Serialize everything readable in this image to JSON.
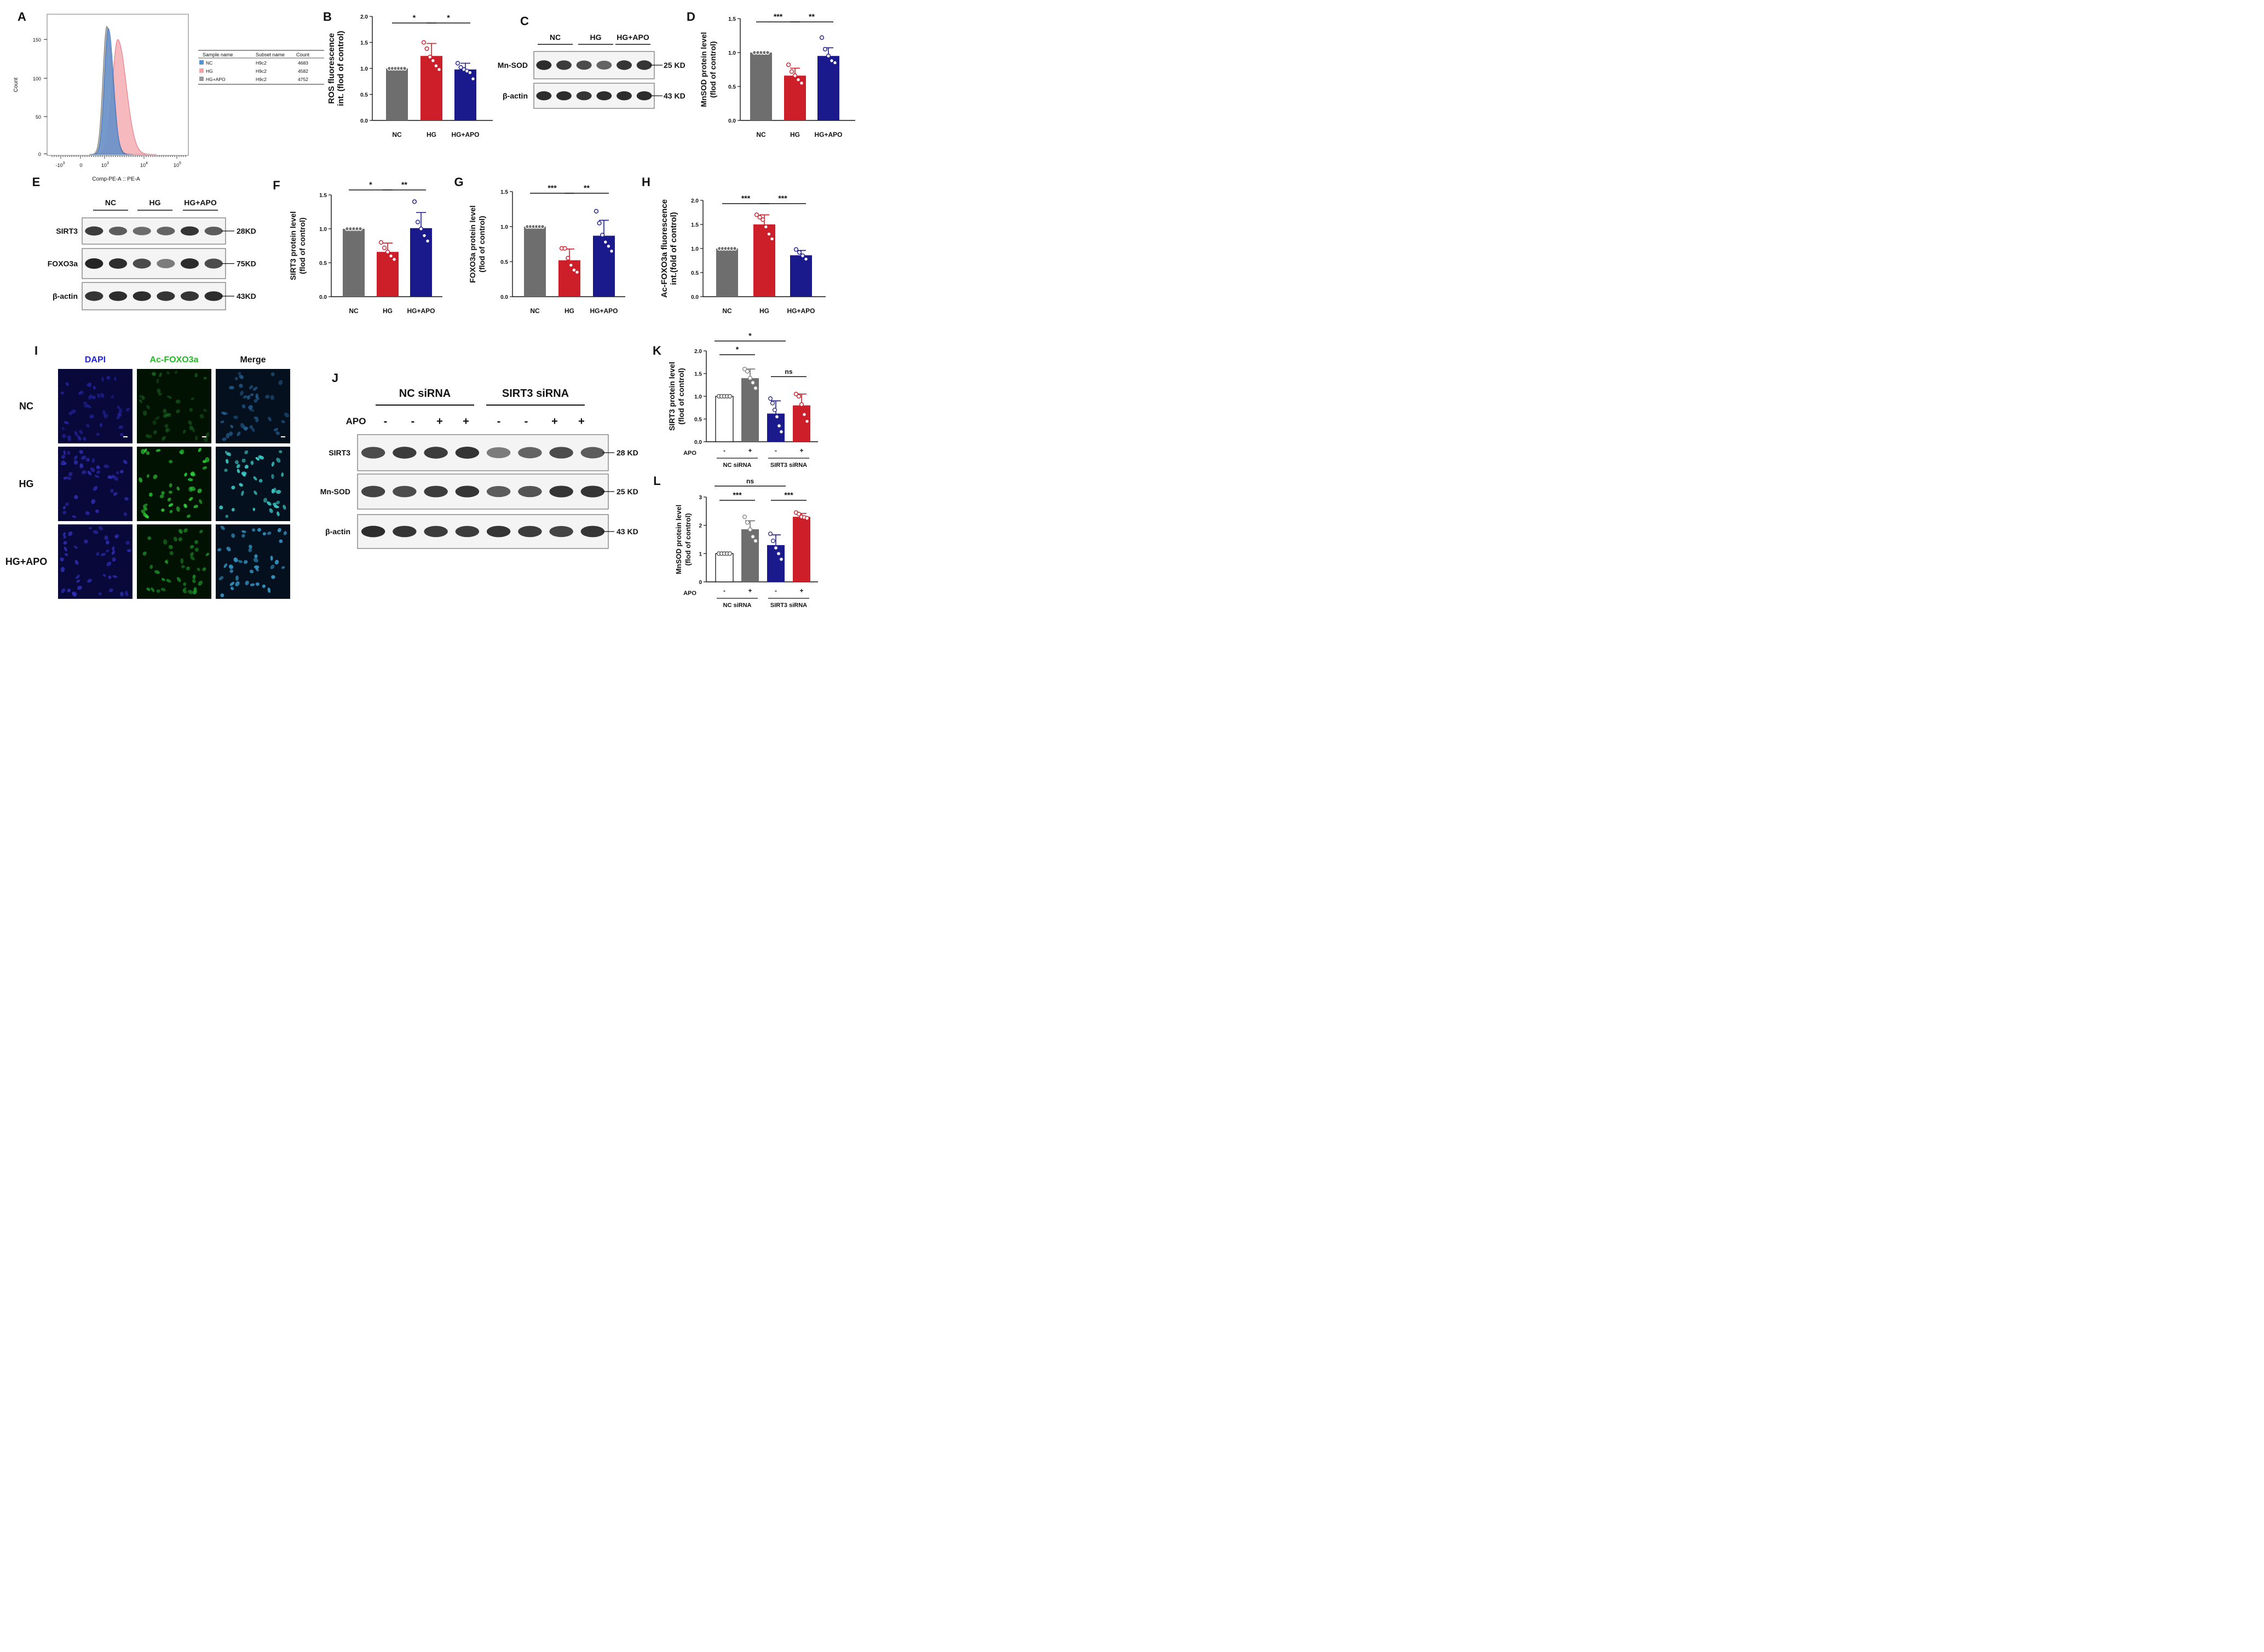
{
  "panels": {
    "A": "A",
    "B": "B",
    "C": "C",
    "D": "D",
    "E": "E",
    "F": "F",
    "G": "G",
    "H": "H",
    "I": "I",
    "J": "J",
    "K": "K",
    "L": "L"
  },
  "colors": {
    "nc": "#6e6e6e",
    "hg": "#cc1f2a",
    "apo": "#1a1a8c",
    "flow_nc": "#5b8fd6",
    "flow_hg": "#f3a3a8",
    "flow_apo": "#9a9a9a"
  },
  "flow": {
    "xlabel": "Comp-PE-A :: PE-A",
    "ylabel": "Count",
    "yticks": [
      "0",
      "50",
      "100",
      "150"
    ],
    "xticks": [
      {
        "base": "-10",
        "exp": "3"
      },
      {
        "base": "0",
        "exp": ""
      },
      {
        "base": "10",
        "exp": "3"
      },
      {
        "base": "10",
        "exp": "4"
      },
      {
        "base": "10",
        "exp": "5"
      }
    ],
    "table": {
      "headers": [
        "Sample name",
        "Subset name",
        "Count"
      ],
      "rows": [
        {
          "sample": "NC",
          "subset": "H9c2",
          "count": "4683"
        },
        {
          "sample": "HG",
          "subset": "H9c2",
          "count": "4582"
        },
        {
          "sample": "HG+APO",
          "subset": "H9c2",
          "count": "4752"
        }
      ]
    }
  },
  "blots": {
    "C": {
      "groups": [
        "NC",
        "HG",
        "HG+APO"
      ],
      "rows": [
        {
          "label": "Mn-SOD",
          "size": "25 KD"
        },
        {
          "label": "β-actin",
          "size": "43 KD"
        }
      ]
    },
    "E": {
      "groups": [
        "NC",
        "HG",
        "HG+APO"
      ],
      "rows": [
        {
          "label": "SIRT3",
          "size": "28KD"
        },
        {
          "label": "FOXO3a",
          "size": "75KD"
        },
        {
          "label": "β-actin",
          "size": "43KD"
        }
      ]
    },
    "J": {
      "groups": [
        "NC  siRNA",
        "SIRT3  siRNA"
      ],
      "apo_label": "APO",
      "apo_signs": [
        "-",
        "-",
        "+",
        "+",
        "-",
        "-",
        "+",
        "+"
      ],
      "rows": [
        {
          "label": "SIRT3",
          "size": "28 KD"
        },
        {
          "label": "Mn-SOD",
          "size": "25 KD"
        },
        {
          "label": "β-actin",
          "size": "43 KD"
        }
      ]
    }
  },
  "if_images": {
    "columns": [
      "DAPI",
      "Ac-FOXO3a",
      "Merge"
    ],
    "rows": [
      "NC",
      "HG",
      "HG+APO"
    ]
  },
  "chart_data": [
    {
      "panel": "B",
      "type": "bar",
      "categories": [
        "NC",
        "HG",
        "HG+APO"
      ],
      "values": [
        1.0,
        1.24,
        0.98
      ],
      "errors": [
        0,
        0.24,
        0.12
      ],
      "points": [
        [
          1,
          1,
          1,
          1,
          1,
          1
        ],
        [
          1.5,
          1.38,
          1.22,
          1.15,
          1.05,
          0.98
        ],
        [
          1.1,
          1.02,
          0.98,
          0.95,
          0.92,
          0.8
        ]
      ],
      "ylabel": [
        "ROS fluorescence",
        "int. (flod of control)"
      ],
      "ylim": [
        0,
        2.0
      ],
      "yticks": [
        "0.0",
        "0.5",
        "1.0",
        "1.5",
        "2.0"
      ],
      "sig": [
        {
          "a": 0,
          "b": 1,
          "label": "*"
        },
        {
          "a": 1,
          "b": 2,
          "label": "*"
        }
      ]
    },
    {
      "panel": "D",
      "type": "bar",
      "categories": [
        "NC",
        "HG",
        "HG+APO"
      ],
      "values": [
        1.0,
        0.66,
        0.95
      ],
      "errors": [
        0,
        0.11,
        0.12
      ],
      "points": [
        [
          1,
          1,
          1,
          1,
          1
        ],
        [
          0.82,
          0.72,
          0.66,
          0.6,
          0.55
        ],
        [
          1.22,
          1.05,
          0.95,
          0.88,
          0.85
        ]
      ],
      "ylabel": [
        "MnSOD protein level",
        "(flod of control)"
      ],
      "ylim": [
        0,
        1.5
      ],
      "yticks": [
        "0.0",
        "0.5",
        "1.0",
        "1.5"
      ],
      "sig": [
        {
          "a": 0,
          "b": 1,
          "label": "***"
        },
        {
          "a": 1,
          "b": 2,
          "label": "**"
        }
      ]
    },
    {
      "panel": "F",
      "type": "bar",
      "categories": [
        "NC",
        "HG",
        "HG+APO"
      ],
      "values": [
        1.0,
        0.66,
        1.01
      ],
      "errors": [
        0,
        0.13,
        0.23
      ],
      "points": [
        [
          1,
          1,
          1,
          1,
          1
        ],
        [
          0.8,
          0.72,
          0.66,
          0.6,
          0.55
        ],
        [
          1.4,
          1.1,
          1.0,
          0.9,
          0.82
        ]
      ],
      "ylabel": [
        "SIRT3 protein level",
        "(flod of control)"
      ],
      "ylim": [
        0,
        1.5
      ],
      "yticks": [
        "0.0",
        "0.5",
        "1.0",
        "1.5"
      ],
      "sig": [
        {
          "a": 0,
          "b": 1,
          "label": "*"
        },
        {
          "a": 1,
          "b": 2,
          "label": "**"
        }
      ]
    },
    {
      "panel": "G",
      "type": "bar",
      "categories": [
        "NC",
        "HG",
        "HG+APO"
      ],
      "values": [
        1.0,
        0.52,
        0.87
      ],
      "errors": [
        0,
        0.16,
        0.22
      ],
      "points": [
        [
          1,
          1,
          1,
          1,
          1,
          1
        ],
        [
          0.69,
          0.69,
          0.55,
          0.45,
          0.38,
          0.35
        ],
        [
          1.22,
          1.05,
          0.88,
          0.78,
          0.72,
          0.65
        ]
      ],
      "ylabel": [
        "FOXO3a protein level",
        "(flod of control)"
      ],
      "ylim": [
        0,
        1.5
      ],
      "yticks": [
        "0.0",
        "0.5",
        "1.0",
        "1.5"
      ],
      "sig": [
        {
          "a": 0,
          "b": 1,
          "label": "***"
        },
        {
          "a": 1,
          "b": 2,
          "label": "**"
        }
      ]
    },
    {
      "panel": "H",
      "type": "bar",
      "categories": [
        "NC",
        "HG",
        "HG+APO"
      ],
      "values": [
        1.0,
        1.5,
        0.86
      ],
      "errors": [
        0,
        0.2,
        0.1
      ],
      "points": [
        [
          1,
          1,
          1,
          1,
          1,
          1
        ],
        [
          1.7,
          1.65,
          1.6,
          1.45,
          1.3,
          1.2
        ],
        [
          0.98,
          0.92,
          0.85,
          0.78
        ]
      ],
      "ylabel": [
        "Ac-FOXO3a fluorescence",
        "int.(fold of control)"
      ],
      "ylim": [
        0,
        2.0
      ],
      "yticks": [
        "0.0",
        "0.5",
        "1.0",
        "1.5",
        "2.0"
      ],
      "sig": [
        {
          "a": 0,
          "b": 1,
          "label": "***"
        },
        {
          "a": 1,
          "b": 2,
          "label": "***"
        }
      ]
    },
    {
      "panel": "K",
      "type": "bar",
      "categories": [
        "-",
        "+",
        "-",
        "+"
      ],
      "values": [
        1.0,
        1.4,
        0.62,
        0.8
      ],
      "errors": [
        0,
        0.2,
        0.28,
        0.25
      ],
      "points": [
        [
          1,
          1,
          1,
          1,
          1
        ],
        [
          1.6,
          1.55,
          1.4,
          1.3,
          1.18
        ],
        [
          0.95,
          0.85,
          0.7,
          0.55,
          0.35,
          0.22
        ],
        [
          1.05,
          1.0,
          0.82,
          0.6,
          0.45
        ]
      ],
      "ylabel": [
        "SIRT3 protein level",
        "(flod of control)"
      ],
      "ylim": [
        0,
        2.0
      ],
      "yticks": [
        "0.0",
        "0.5",
        "1.0",
        "1.5",
        "2.0"
      ],
      "apo_label": "APO",
      "groups": [
        "NC siRNA",
        "SIRT3 siRNA"
      ],
      "sig": [
        {
          "a": 0,
          "b": 1,
          "label": "*"
        },
        {
          "a": 0,
          "b": 2,
          "label": "*"
        },
        {
          "a": 2,
          "b": 3,
          "label": "ns"
        }
      ]
    },
    {
      "panel": "L",
      "type": "bar",
      "categories": [
        "-",
        "+",
        "-",
        "+"
      ],
      "values": [
        1.0,
        1.86,
        1.3,
        2.3
      ],
      "errors": [
        0,
        0.3,
        0.36,
        0.12
      ],
      "points": [
        [
          1,
          1,
          1,
          1,
          1
        ],
        [
          2.3,
          2.1,
          1.85,
          1.6,
          1.45
        ],
        [
          1.7,
          1.45,
          1.2,
          1.0,
          0.8
        ],
        [
          2.45,
          2.4,
          2.3,
          2.28,
          2.25
        ]
      ],
      "ylabel": [
        "MnSOD protein level",
        "(flod of control)"
      ],
      "ylim": [
        0,
        3
      ],
      "yticks": [
        "0",
        "1",
        "2",
        "3"
      ],
      "apo_label": "APO",
      "groups": [
        "NC siRNA",
        "SIRT3 siRNA"
      ],
      "sig": [
        {
          "a": 0,
          "b": 1,
          "label": "***"
        },
        {
          "a": 0,
          "b": 2,
          "label": "ns"
        },
        {
          "a": 2,
          "b": 3,
          "label": "***"
        }
      ]
    }
  ]
}
